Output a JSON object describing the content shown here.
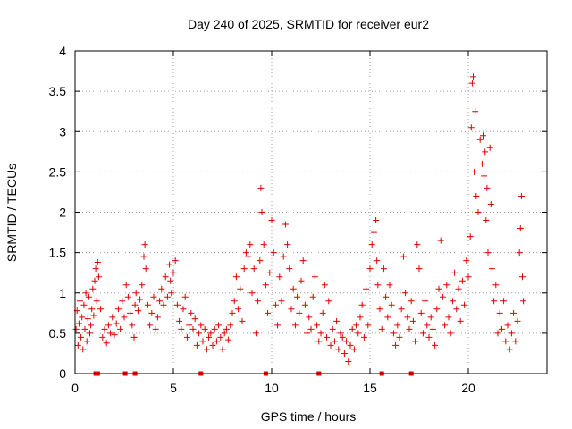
{
  "chart_data": {
    "type": "scatter",
    "title": "Day 240 of 2025, SRMTID for receiver eur2",
    "xlabel": "GPS time / hours",
    "ylabel": "SRMTID / TECUs",
    "xlim": [
      0,
      24
    ],
    "ylim": [
      0,
      4
    ],
    "xticks": [
      0,
      5,
      10,
      15,
      20
    ],
    "xtick_labels": [
      "0",
      "5",
      "10",
      "15",
      "20"
    ],
    "yticks": [
      0,
      0.5,
      1,
      1.5,
      2,
      2.5,
      3,
      3.5,
      4
    ],
    "ytick_labels": [
      "0",
      "0.5",
      "1",
      "1.5",
      "2",
      "2.5",
      "3",
      "3.5",
      "4"
    ],
    "grid": true,
    "marker": "plus",
    "series_color": "#e00000",
    "series": [
      {
        "name": "SRMTID",
        "points": [
          [
            0.05,
            0.55
          ],
          [
            0.1,
            0.78
          ],
          [
            0.15,
            0.35
          ],
          [
            0.2,
            0.62
          ],
          [
            0.25,
            0.9
          ],
          [
            0.3,
            0.45
          ],
          [
            0.35,
            0.7
          ],
          [
            0.4,
            0.3
          ],
          [
            0.45,
            0.85
          ],
          [
            0.5,
            0.55
          ],
          [
            0.55,
            1.0
          ],
          [
            0.6,
            0.4
          ],
          [
            0.65,
            0.68
          ],
          [
            0.7,
            0.95
          ],
          [
            0.75,
            0.5
          ],
          [
            0.8,
            0.6
          ],
          [
            0.85,
            0.8
          ],
          [
            0.9,
            1.05
          ],
          [
            0.95,
            0.72
          ],
          [
            1.0,
            1.15
          ],
          [
            1.05,
            1.3
          ],
          [
            1.1,
            0.9
          ],
          [
            1.15,
            1.38
          ],
          [
            1.2,
            1.2
          ],
          [
            1.3,
            0.8
          ],
          [
            1.4,
            0.45
          ],
          [
            1.5,
            0.55
          ],
          [
            1.6,
            0.38
          ],
          [
            1.7,
            0.6
          ],
          [
            1.8,
            0.5
          ],
          [
            1.9,
            0.7
          ],
          [
            2.0,
            0.48
          ],
          [
            2.1,
            0.62
          ],
          [
            2.2,
            0.8
          ],
          [
            2.3,
            0.55
          ],
          [
            2.4,
            0.9
          ],
          [
            2.5,
            0.7
          ],
          [
            2.6,
            1.1
          ],
          [
            2.7,
            0.95
          ],
          [
            2.8,
            0.75
          ],
          [
            2.9,
            0.6
          ],
          [
            3.0,
            0.45
          ],
          [
            3.05,
            0.85
          ],
          [
            3.1,
            1.0
          ],
          [
            3.2,
            0.78
          ],
          [
            3.3,
            0.92
          ],
          [
            3.4,
            1.1
          ],
          [
            3.5,
            1.45
          ],
          [
            3.55,
            1.6
          ],
          [
            3.6,
            1.3
          ],
          [
            3.7,
            0.85
          ],
          [
            3.8,
            0.6
          ],
          [
            3.9,
            0.75
          ],
          [
            4.0,
            0.95
          ],
          [
            4.1,
            0.55
          ],
          [
            4.2,
            0.7
          ],
          [
            4.3,
            0.9
          ],
          [
            4.4,
            1.05
          ],
          [
            4.5,
            0.85
          ],
          [
            4.6,
            1.2
          ],
          [
            4.7,
            0.95
          ],
          [
            4.8,
            1.35
          ],
          [
            4.85,
            1.15
          ],
          [
            4.9,
            1.0
          ],
          [
            5.0,
            1.25
          ],
          [
            5.1,
            1.4
          ],
          [
            5.2,
            0.85
          ],
          [
            5.3,
            0.65
          ],
          [
            5.4,
            0.55
          ],
          [
            5.5,
            0.8
          ],
          [
            5.6,
            0.95
          ],
          [
            5.7,
            0.45
          ],
          [
            5.8,
            0.6
          ],
          [
            5.9,
            0.75
          ],
          [
            6.0,
            0.55
          ],
          [
            6.1,
            0.68
          ],
          [
            6.2,
            0.35
          ],
          [
            6.3,
            0.5
          ],
          [
            6.4,
            0.6
          ],
          [
            6.5,
            0.4
          ],
          [
            6.6,
            0.55
          ],
          [
            6.7,
            0.3
          ],
          [
            6.8,
            0.45
          ],
          [
            6.9,
            0.5
          ],
          [
            7.0,
            0.35
          ],
          [
            7.1,
            0.55
          ],
          [
            7.2,
            0.4
          ],
          [
            7.3,
            0.6
          ],
          [
            7.4,
            0.45
          ],
          [
            7.5,
            0.3
          ],
          [
            7.6,
            0.5
          ],
          [
            7.7,
            0.55
          ],
          [
            7.8,
            0.42
          ],
          [
            7.9,
            0.6
          ],
          [
            8.0,
            0.75
          ],
          [
            8.1,
            0.9
          ],
          [
            8.2,
            1.2
          ],
          [
            8.3,
            0.8
          ],
          [
            8.4,
            1.05
          ],
          [
            8.5,
            0.65
          ],
          [
            8.6,
            1.3
          ],
          [
            8.7,
            1.5
          ],
          [
            8.8,
            1.45
          ],
          [
            8.9,
            1.6
          ],
          [
            9.0,
            1.0
          ],
          [
            9.1,
            1.3
          ],
          [
            9.2,
            0.5
          ],
          [
            9.3,
            0.9
          ],
          [
            9.4,
            1.4
          ],
          [
            9.45,
            2.3
          ],
          [
            9.5,
            2.0
          ],
          [
            9.6,
            1.6
          ],
          [
            9.7,
            1.1
          ],
          [
            9.8,
            0.75
          ],
          [
            9.9,
            1.25
          ],
          [
            10.0,
            1.9
          ],
          [
            10.1,
            1.5
          ],
          [
            10.2,
            0.85
          ],
          [
            10.3,
            0.6
          ],
          [
            10.4,
            1.2
          ],
          [
            10.5,
            0.9
          ],
          [
            10.6,
            1.45
          ],
          [
            10.7,
            1.85
          ],
          [
            10.8,
            1.6
          ],
          [
            10.9,
            1.3
          ],
          [
            11.0,
            0.8
          ],
          [
            11.1,
            1.05
          ],
          [
            11.2,
            0.6
          ],
          [
            11.3,
            0.95
          ],
          [
            11.4,
            0.75
          ],
          [
            11.5,
            1.15
          ],
          [
            11.6,
            1.4
          ],
          [
            11.7,
            0.85
          ],
          [
            11.8,
            0.5
          ],
          [
            11.9,
            0.7
          ],
          [
            12.0,
            0.55
          ],
          [
            12.1,
            0.95
          ],
          [
            12.2,
            1.2
          ],
          [
            12.3,
            0.6
          ],
          [
            12.4,
            0.4
          ],
          [
            12.5,
            0.5
          ],
          [
            12.6,
            0.75
          ],
          [
            12.7,
            1.1
          ],
          [
            12.8,
            0.45
          ],
          [
            12.9,
            0.9
          ],
          [
            13.0,
            0.35
          ],
          [
            13.1,
            0.55
          ],
          [
            13.2,
            0.4
          ],
          [
            13.3,
            0.65
          ],
          [
            13.4,
            0.3
          ],
          [
            13.5,
            0.5
          ],
          [
            13.6,
            0.45
          ],
          [
            13.7,
            0.25
          ],
          [
            13.8,
            0.4
          ],
          [
            13.9,
            0.15
          ],
          [
            14.0,
            0.35
          ],
          [
            14.1,
            0.55
          ],
          [
            14.2,
            0.3
          ],
          [
            14.3,
            0.6
          ],
          [
            14.4,
            0.5
          ],
          [
            14.5,
            0.7
          ],
          [
            14.6,
            0.85
          ],
          [
            14.7,
            0.45
          ],
          [
            14.8,
            1.05
          ],
          [
            14.9,
            0.6
          ],
          [
            15.0,
            1.3
          ],
          [
            15.1,
            1.6
          ],
          [
            15.2,
            1.75
          ],
          [
            15.3,
            1.9
          ],
          [
            15.35,
            1.4
          ],
          [
            15.4,
            1.1
          ],
          [
            15.5,
            0.8
          ],
          [
            15.6,
            0.55
          ],
          [
            15.7,
            1.3
          ],
          [
            15.8,
            0.95
          ],
          [
            15.9,
            0.7
          ],
          [
            16.0,
            1.1
          ],
          [
            16.1,
            0.85
          ],
          [
            16.2,
            0.5
          ],
          [
            16.3,
            0.35
          ],
          [
            16.4,
            0.6
          ],
          [
            16.5,
            0.45
          ],
          [
            16.6,
            0.8
          ],
          [
            16.7,
            1.45
          ],
          [
            16.8,
            1.0
          ],
          [
            16.9,
            0.7
          ],
          [
            17.0,
            0.55
          ],
          [
            17.1,
            0.9
          ],
          [
            17.2,
            0.65
          ],
          [
            17.3,
            0.4
          ],
          [
            17.4,
            1.6
          ],
          [
            17.5,
            1.3
          ],
          [
            17.6,
            0.75
          ],
          [
            17.7,
            0.5
          ],
          [
            17.8,
            0.9
          ],
          [
            17.9,
            0.6
          ],
          [
            18.0,
            0.45
          ],
          [
            18.1,
            0.7
          ],
          [
            18.2,
            0.55
          ],
          [
            18.3,
            0.35
          ],
          [
            18.4,
            0.8
          ],
          [
            18.5,
            1.05
          ],
          [
            18.6,
            1.65
          ],
          [
            18.7,
            0.95
          ],
          [
            18.8,
            0.6
          ],
          [
            18.9,
            1.1
          ],
          [
            19.0,
            0.7
          ],
          [
            19.1,
            0.5
          ],
          [
            19.2,
            0.9
          ],
          [
            19.3,
            1.25
          ],
          [
            19.4,
            0.8
          ],
          [
            19.5,
            1.05
          ],
          [
            19.6,
            0.65
          ],
          [
            19.7,
            1.15
          ],
          [
            19.8,
            0.85
          ],
          [
            19.9,
            1.4
          ],
          [
            20.0,
            1.2
          ],
          [
            20.1,
            1.7
          ],
          [
            20.15,
            3.05
          ],
          [
            20.2,
            3.6
          ],
          [
            20.25,
            3.68
          ],
          [
            20.3,
            2.5
          ],
          [
            20.35,
            3.25
          ],
          [
            20.4,
            2.2
          ],
          [
            20.5,
            2.0
          ],
          [
            20.6,
            2.9
          ],
          [
            20.7,
            2.6
          ],
          [
            20.75,
            2.95
          ],
          [
            20.8,
            2.45
          ],
          [
            20.85,
            2.75
          ],
          [
            20.9,
            1.9
          ],
          [
            20.95,
            2.3
          ],
          [
            21.0,
            1.5
          ],
          [
            21.1,
            2.8
          ],
          [
            21.15,
            2.1
          ],
          [
            21.2,
            1.3
          ],
          [
            21.3,
            0.9
          ],
          [
            21.4,
            1.1
          ],
          [
            21.5,
            0.5
          ],
          [
            21.6,
            0.75
          ],
          [
            21.7,
            0.55
          ],
          [
            21.8,
            0.9
          ],
          [
            21.9,
            0.4
          ],
          [
            22.0,
            0.6
          ],
          [
            22.1,
            0.3
          ],
          [
            22.2,
            0.5
          ],
          [
            22.3,
            0.75
          ],
          [
            22.4,
            0.4
          ],
          [
            22.5,
            0.65
          ],
          [
            22.6,
            1.5
          ],
          [
            22.65,
            1.8
          ],
          [
            22.7,
            2.2
          ],
          [
            22.75,
            1.2
          ],
          [
            22.8,
            0.9
          ]
        ]
      }
    ],
    "baseline_markers_x": [
      1.05,
      1.15,
      2.55,
      3.05,
      6.4,
      9.7,
      12.4,
      15.6,
      17.1
    ]
  }
}
